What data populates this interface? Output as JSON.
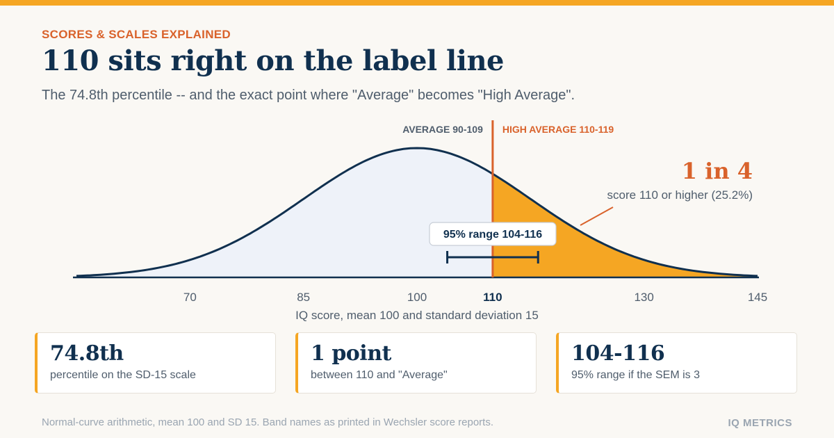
{
  "header": {
    "eyebrow": "SCORES & SCALES EXPLAINED",
    "title": "110 sits right on the label line",
    "subtitle": "The 74.8th percentile -- and the exact point where \"Average\" becomes \"High Average\"."
  },
  "chart_data": {
    "type": "area",
    "distribution": {
      "mean": 100,
      "sd": 15
    },
    "xlim": [
      55,
      145
    ],
    "xticks": [
      70,
      85,
      100,
      110,
      130,
      145
    ],
    "highlight_tick": 110,
    "xlabel": "IQ score, mean 100 and standard deviation 15",
    "cutoff": 110,
    "bands": [
      {
        "label": "AVERAGE 90-109",
        "side": "left"
      },
      {
        "label": "HIGH AVERAGE 110-119",
        "side": "right"
      }
    ],
    "shaded_tail": {
      "from": 110,
      "to": 145
    },
    "callout": {
      "big": "1 in 4",
      "text": "score 110 or higher (25.2%)",
      "proportion": 0.252
    },
    "range_bar": {
      "label": "95% range 104-116",
      "low": 104,
      "high": 116
    },
    "colors": {
      "curve": "#10304f",
      "fill_left": "#eef2f9",
      "fill_tail": "#f5a623",
      "cutoff": "#d9622b",
      "band_left": "#4f5d6c",
      "band_right": "#d9622b"
    }
  },
  "cards": [
    {
      "value": "74.8th",
      "label": "percentile on the SD-15 scale"
    },
    {
      "value": "1 point",
      "label": "between 110 and \"Average\""
    },
    {
      "value": "104-116",
      "label": "95% range if the SEM is 3"
    }
  ],
  "footer": {
    "note": "Normal-curve arithmetic, mean 100 and SD 15. Band names as printed in Wechsler score reports.",
    "brand": "IQ METRICS"
  },
  "accent_color": "#f5a623"
}
